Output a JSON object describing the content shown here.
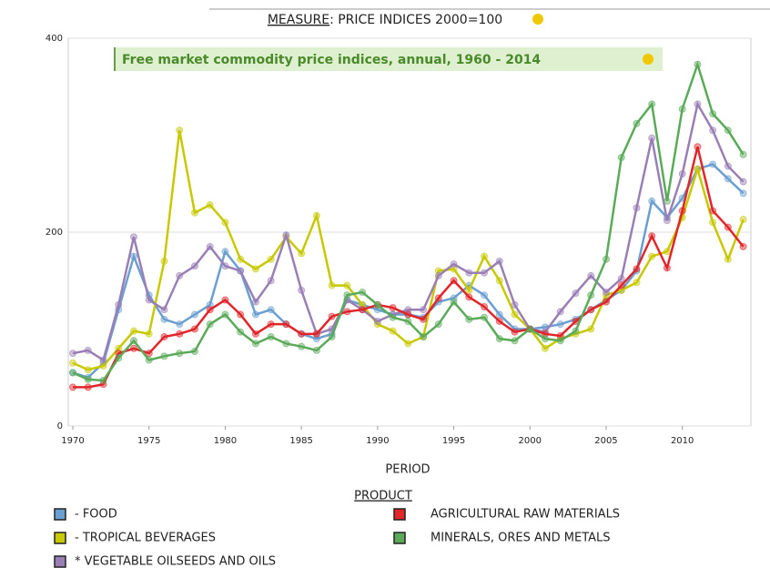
{
  "chart_data": {
    "type": "line",
    "measure": "MEASURE",
    "title": ": PRICE INDICES 2000=100",
    "subtitle": "Free market commodity price indices, annual, 1960 - 2014",
    "x_label": "PERIOD",
    "legend_title": "PRODUCT",
    "x": [
      1970,
      1971,
      1972,
      1973,
      1974,
      1975,
      1976,
      1977,
      1978,
      1979,
      1980,
      1981,
      1982,
      1983,
      1984,
      1985,
      1986,
      1987,
      1988,
      1989,
      1990,
      1991,
      1992,
      1993,
      1994,
      1995,
      1996,
      1997,
      1998,
      1999,
      2000,
      2001,
      2002,
      2003,
      2004,
      2005,
      2006,
      2007,
      2008,
      2009,
      2010,
      2011,
      2012,
      2013,
      2014
    ],
    "xlim": [
      1969.7,
      2014.5
    ],
    "xticks": [
      1970,
      1975,
      1980,
      1985,
      1990,
      1995,
      2000,
      2005,
      2010
    ],
    "ylim": [
      0,
      400
    ],
    "yticks": [
      0,
      200,
      400
    ],
    "grid": true,
    "series": [
      {
        "name": "- FOOD",
        "color": "#6a9fd0",
        "values": [
          55,
          50,
          65,
          120,
          175,
          135,
          110,
          105,
          115,
          125,
          180,
          160,
          115,
          120,
          105,
          95,
          90,
          95,
          130,
          125,
          120,
          115,
          115,
          112,
          128,
          132,
          145,
          135,
          115,
          100,
          100,
          102,
          105,
          110,
          120,
          130,
          140,
          160,
          232,
          215,
          235,
          265,
          270,
          255,
          240
        ]
      },
      {
        "name": "- TROPICAL BEVERAGES",
        "color": "#c8c800",
        "values": [
          65,
          58,
          62,
          80,
          98,
          95,
          170,
          305,
          220,
          228,
          210,
          172,
          162,
          172,
          195,
          178,
          217,
          145,
          145,
          125,
          105,
          98,
          85,
          92,
          160,
          162,
          140,
          175,
          150,
          115,
          100,
          80,
          90,
          95,
          100,
          135,
          140,
          148,
          175,
          180,
          215,
          265,
          210,
          172,
          213
        ]
      },
      {
        "name": "* VEGETABLE OILSEEDS AND OILS",
        "color": "#9a7fb5",
        "values": [
          75,
          78,
          68,
          125,
          195,
          130,
          120,
          155,
          165,
          185,
          165,
          160,
          128,
          150,
          197,
          140,
          95,
          100,
          130,
          120,
          108,
          115,
          120,
          120,
          155,
          167,
          158,
          158,
          170,
          125,
          100,
          97,
          118,
          137,
          155,
          138,
          152,
          225,
          297,
          212,
          260,
          332,
          305,
          268,
          252
        ]
      },
      {
        "name": "AGRICULTURAL RAW MATERIALS",
        "color": "#e0262a",
        "values": [
          40,
          40,
          43,
          75,
          80,
          75,
          92,
          95,
          100,
          120,
          130,
          115,
          95,
          105,
          105,
          95,
          95,
          113,
          118,
          120,
          125,
          122,
          115,
          110,
          132,
          150,
          133,
          123,
          108,
          97,
          100,
          95,
          93,
          108,
          120,
          128,
          145,
          162,
          196,
          163,
          222,
          288,
          222,
          205,
          185
        ]
      },
      {
        "name": "MINERALS, ORES AND METALS",
        "color": "#5aaa5a",
        "values": [
          55,
          48,
          47,
          70,
          88,
          68,
          72,
          75,
          77,
          105,
          115,
          97,
          85,
          92,
          85,
          82,
          78,
          92,
          135,
          138,
          125,
          112,
          108,
          92,
          105,
          128,
          110,
          112,
          90,
          88,
          100,
          90,
          88,
          98,
          135,
          172,
          277,
          312,
          332,
          232,
          327,
          373,
          322,
          305,
          280
        ]
      }
    ]
  }
}
